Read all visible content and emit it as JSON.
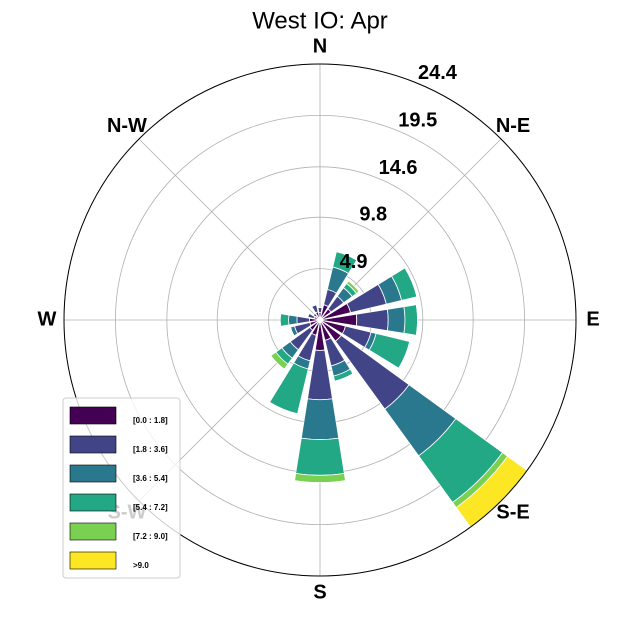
{
  "chart_data": {
    "type": "windrose",
    "title": "West IO: Apr",
    "categories": [
      "N",
      null,
      "N-E",
      null,
      "E",
      null,
      "S-E",
      null,
      "S",
      null,
      "S-W",
      null,
      "W",
      null,
      "N-W",
      null
    ],
    "series": [
      {
        "name": "[0.0 : 1.8]",
        "color": "#440154",
        "values": [
          0.7,
          1.5,
          1.3,
          3.0,
          3.5,
          2.5,
          2.5,
          2.0,
          2.9,
          1.5,
          1.2,
          1.0,
          1.0,
          0.6,
          0.5,
          0.8
        ]
      },
      {
        "name": "[1.8 : 3.6]",
        "color": "#414487",
        "values": [
          0.5,
          1.5,
          1.5,
          3.5,
          3.0,
          2.5,
          8.0,
          2.5,
          4.7,
          2.5,
          2.3,
          1.5,
          1.2,
          0.6,
          0.3,
          0.7
        ]
      },
      {
        "name": "[3.6 : 5.4]",
        "color": "#2a788e",
        "values": [
          0,
          2.2,
          1.0,
          1.5,
          1.6,
          0.5,
          5.5,
          1.0,
          3.8,
          0.8,
          1.0,
          0.4,
          0.8,
          0,
          0,
          0
        ]
      },
      {
        "name": "[5.4 : 7.2]",
        "color": "#22a884",
        "values": [
          0,
          1.5,
          0.5,
          1.5,
          1.2,
          3.3,
          5.5,
          0.5,
          3.4,
          4.4,
          0.7,
          0,
          0.8,
          0,
          0,
          0
        ]
      },
      {
        "name": "[7.2 : 9.0]",
        "color": "#7ad151",
        "values": [
          0,
          0,
          0.3,
          0,
          0,
          0,
          0.6,
          0,
          0.7,
          0,
          0.6,
          0,
          0,
          0,
          0,
          0
        ]
      },
      {
        "name": ">9.0",
        "color": "#fde725",
        "values": [
          0,
          0,
          0,
          0,
          0,
          0,
          2.3,
          0,
          0,
          0,
          0,
          0,
          0,
          0,
          0,
          0
        ]
      }
    ],
    "ylim": [
      0,
      24.4
    ],
    "yticks": [
      4.9,
      9.8,
      14.6,
      19.5,
      24.4
    ],
    "grid": true,
    "legend": "lower left"
  }
}
